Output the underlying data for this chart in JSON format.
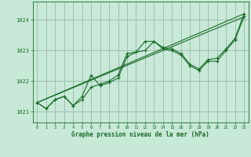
{
  "title": "Graphe pression niveau de la mer (hPa)",
  "background_color": "#c8e8d8",
  "plot_bg_color": "#c8e8d8",
  "grid_color": "#99bbaa",
  "line_color": "#1a6b2a",
  "marker_color": "#1a6b2a",
  "xlim": [
    -0.5,
    23.5
  ],
  "ylim": [
    1020.65,
    1024.6
  ],
  "yticks": [
    1021,
    1022,
    1023,
    1024
  ],
  "xticks": [
    0,
    1,
    2,
    3,
    4,
    5,
    6,
    7,
    8,
    9,
    10,
    11,
    12,
    13,
    14,
    15,
    16,
    17,
    18,
    19,
    20,
    21,
    22,
    23
  ],
  "line1_x": [
    0,
    1,
    2,
    3,
    4,
    5,
    6,
    7,
    8,
    9,
    10,
    11,
    12,
    13,
    14,
    15,
    16,
    17,
    18,
    19,
    20,
    21,
    22,
    23
  ],
  "line1_y": [
    1021.3,
    1021.1,
    1021.4,
    1021.5,
    1021.2,
    1021.4,
    1021.8,
    1021.9,
    1022.0,
    1022.2,
    1022.9,
    1022.95,
    1023.3,
    1023.3,
    1023.1,
    1023.05,
    1022.9,
    1022.55,
    1022.4,
    1022.7,
    1022.75,
    1023.05,
    1023.4,
    1024.2
  ],
  "line2_x": [
    0,
    1,
    2,
    3,
    4,
    5,
    6,
    7,
    8,
    9,
    10,
    11,
    12,
    13,
    14,
    15,
    16,
    17,
    18,
    19,
    20,
    21,
    22,
    23
  ],
  "line2_y": [
    1021.3,
    1021.1,
    1021.4,
    1021.5,
    1021.2,
    1021.5,
    1022.2,
    1021.85,
    1021.95,
    1022.1,
    1022.8,
    1022.95,
    1023.0,
    1023.3,
    1023.05,
    1023.0,
    1022.85,
    1022.5,
    1022.35,
    1022.65,
    1022.65,
    1023.0,
    1023.35,
    1024.1
  ],
  "line3_x": [
    0,
    23
  ],
  "line3_y": [
    1021.3,
    1024.2
  ],
  "line4_x": [
    0,
    23
  ],
  "line4_y": [
    1021.3,
    1024.1
  ]
}
